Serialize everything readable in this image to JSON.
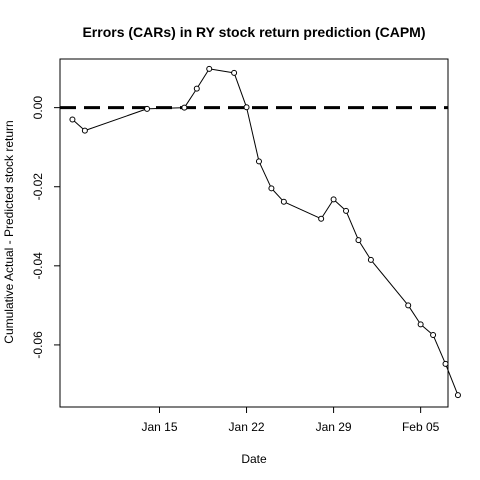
{
  "chart_data": {
    "type": "line",
    "title": "Errors (CARs) in RY stock return prediction (CAPM)",
    "xlabel": "Date",
    "ylabel": "Cumulative Actual - Predicted stock return",
    "x_tick_labels": [
      "Jan 15",
      "Jan 22",
      "Jan 29",
      "Feb 05"
    ],
    "x_tick_values": [
      15,
      22,
      29,
      36
    ],
    "y_tick_labels": [
      "0.00",
      "-0.02",
      "-0.04",
      "-0.06"
    ],
    "y_tick_values": [
      0.0,
      -0.02,
      -0.04,
      -0.06
    ],
    "xlim": [
      7.0,
      38.2
    ],
    "ylim": [
      -0.0757,
      0.0123
    ],
    "reference_line": {
      "y": 0.0,
      "style": "dashed"
    },
    "series": [
      {
        "name": "CAR",
        "x": [
          8,
          9,
          14,
          17,
          18,
          19,
          21,
          22,
          23,
          24,
          25,
          28,
          29,
          30,
          31,
          32,
          35,
          36,
          37,
          38,
          39
        ],
        "y": [
          -0.003,
          -0.0058,
          -0.0003,
          0.0,
          0.0048,
          0.0098,
          0.0088,
          0.0001,
          -0.0136,
          -0.0204,
          -0.0238,
          -0.0281,
          -0.0232,
          -0.0261,
          -0.0335,
          -0.0385,
          -0.05,
          -0.0548,
          -0.0575,
          -0.0648,
          -0.0727
        ]
      }
    ]
  }
}
